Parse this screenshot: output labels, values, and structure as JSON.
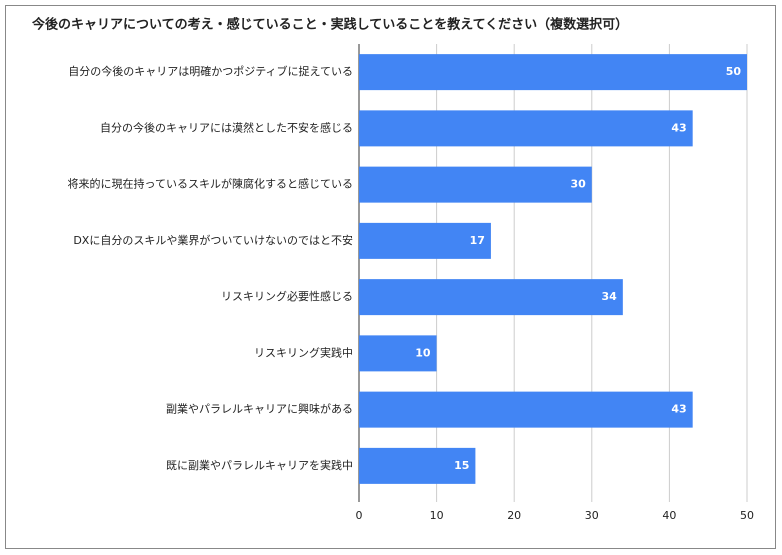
{
  "chart_data": {
    "type": "bar",
    "orientation": "horizontal",
    "title": "今後のキャリアについての考え・感じていること・実践していることを教えてください（複数選択可）",
    "categories": [
      "自分の今後のキャリアは明確かつポジティブに捉えている",
      "自分の今後のキャリアには漠然とした不安を感じる",
      "将来的に現在持っているスキルが陳腐化すると感じている",
      "DXに自分のスキルや業界がついていけないのではと不安",
      "リスキリング必要性感じる",
      "リスキリング実践中",
      "副業やパラレルキャリアに興味がある",
      "既に副業やパラレルキャリアを実践中"
    ],
    "values": [
      50,
      43,
      30,
      17,
      34,
      10,
      43,
      15
    ],
    "color": "#4285f4",
    "xlim": [
      0,
      50
    ],
    "xticks": [
      0,
      10,
      20,
      30,
      40,
      50
    ],
    "grid": true
  }
}
